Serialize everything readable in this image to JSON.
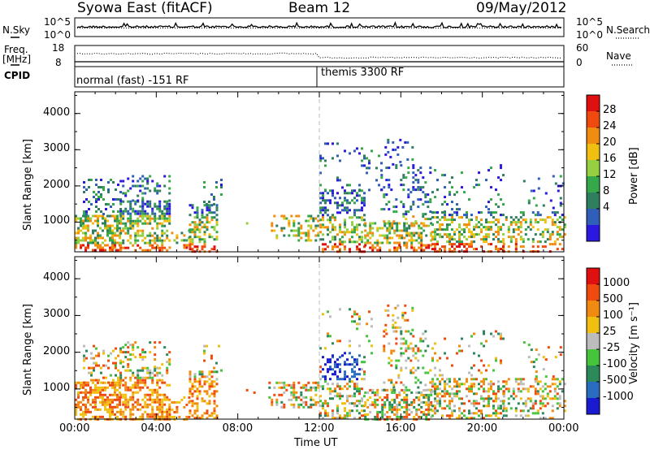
{
  "header": {
    "station": "Syowa East (fitACF)",
    "beam": "Beam 12",
    "date": "09/May/2012"
  },
  "strip_labels": {
    "nsky": "N.Sky",
    "nsky_ticks": [
      "10^5",
      "10^0"
    ],
    "nsearch": "N.Search",
    "nsearch_ticks": [
      "10^5",
      "10^0"
    ],
    "freq_line1": "Freq.",
    "freq_line2": "[MHz]",
    "freq_ticks": [
      "18",
      "8"
    ],
    "nave_ticks": [
      "60",
      "0"
    ],
    "nave": "Nave",
    "cpid": "CPID",
    "mode1": "normal (fast) -151 RF",
    "mode2": "themis 3300 RF"
  },
  "colors": {
    "power_scale": [
      "#2a18e0",
      "#2f5fb8",
      "#2f7e5e",
      "#35a84a",
      "#94d040",
      "#f0c010",
      "#f08c10",
      "#f04a10",
      "#e01010"
    ],
    "velocity_scale": [
      "#1a1ad0",
      "#2a6cbf",
      "#2c8a5a",
      "#46c43c",
      "#bcbcbc",
      "#f0c010",
      "#f08a10",
      "#f04a10",
      "#e01010"
    ]
  },
  "chart_data": [
    {
      "type": "heatmap",
      "title": "Power",
      "ylabel": "Slant Range [km]",
      "ylim": [
        180,
        4600
      ],
      "yticks": [
        1000,
        2000,
        3000,
        4000
      ],
      "xlim": [
        0,
        24
      ],
      "colorbar": {
        "label": "Power [dB]",
        "ticks": [
          "28",
          "24",
          "20",
          "16",
          "12",
          "8",
          "4"
        ],
        "range": [
          0,
          32
        ]
      },
      "mode_change_hour": 12
    },
    {
      "type": "heatmap",
      "title": "Velocity",
      "ylabel": "Slant Range [km]",
      "xlabel": "Time UT",
      "ylim": [
        180,
        4600
      ],
      "yticks": [
        1000,
        2000,
        3000,
        4000
      ],
      "xlim": [
        0,
        24
      ],
      "xticks": [
        "00:00",
        "04:00",
        "08:00",
        "12:00",
        "16:00",
        "20:00",
        "00:00"
      ],
      "colorbar": {
        "label": "Velocity [m s⁻¹]",
        "ticks": [
          "1000",
          "500",
          "100",
          "25",
          "-25",
          "-100",
          "-500",
          "-1000"
        ]
      },
      "mode_change_hour": 12
    }
  ]
}
